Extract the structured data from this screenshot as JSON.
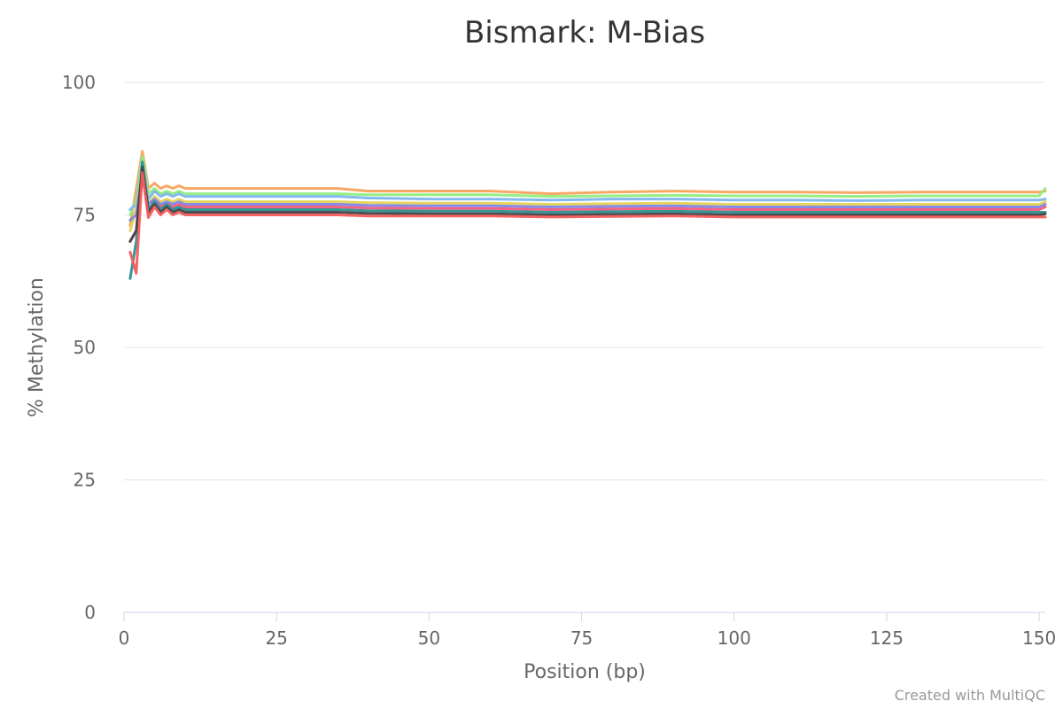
{
  "chart_data": {
    "type": "line",
    "title": "Bismark: M-Bias",
    "xlabel": "Position (bp)",
    "ylabel": "% Methylation",
    "xlim": [
      0,
      151
    ],
    "ylim": [
      0,
      100
    ],
    "x_ticks": [
      0,
      25,
      50,
      75,
      100,
      125,
      150
    ],
    "y_ticks": [
      0,
      25,
      50,
      75,
      100
    ],
    "grid": "horizontal",
    "legend": "none",
    "x": [
      1,
      2,
      3,
      4,
      5,
      6,
      7,
      8,
      9,
      10,
      12,
      15,
      20,
      25,
      30,
      35,
      40,
      50,
      60,
      70,
      80,
      90,
      100,
      110,
      120,
      130,
      140,
      150,
      151
    ],
    "series": [
      {
        "color": "#f7a35c",
        "values": [
          73,
          80,
          87,
          80,
          81,
          80,
          80.5,
          80,
          80.5,
          80,
          80,
          80,
          80,
          80,
          80,
          80,
          79.5,
          79.5,
          79.5,
          79,
          79.3,
          79.5,
          79.3,
          79.3,
          79.2,
          79.3,
          79.3,
          79.3,
          79.5
        ]
      },
      {
        "color": "#90ed7d",
        "values": [
          75,
          78,
          86,
          79,
          80,
          79,
          79.5,
          79,
          79.5,
          79,
          79,
          79,
          79,
          79,
          79,
          79,
          78.8,
          78.8,
          78.8,
          78.5,
          78.6,
          78.7,
          78.6,
          78.6,
          78.5,
          78.6,
          78.6,
          78.6,
          80
        ]
      },
      {
        "color": "#7cb5ec",
        "values": [
          76,
          77,
          85,
          78,
          79.5,
          78.5,
          79,
          78.5,
          79,
          78.5,
          78.5,
          78.5,
          78.5,
          78.5,
          78.5,
          78.5,
          78.2,
          78,
          78,
          77.8,
          78,
          78,
          77.8,
          77.8,
          77.7,
          77.8,
          77.8,
          77.8,
          78
        ]
      },
      {
        "color": "#e4d354",
        "values": [
          72,
          76,
          84,
          77,
          78.5,
          77.5,
          78,
          77.5,
          78,
          77.5,
          77.5,
          77.5,
          77.5,
          77.5,
          77.5,
          77.5,
          77.3,
          77.2,
          77.2,
          77,
          77.1,
          77.2,
          77,
          77,
          77,
          77,
          77,
          77,
          77.5
        ]
      },
      {
        "color": "#8085e9",
        "values": [
          74,
          75,
          83,
          77,
          78,
          77,
          77.5,
          77,
          77.5,
          77,
          77,
          77,
          77,
          77,
          77,
          77,
          76.8,
          76.7,
          76.7,
          76.5,
          76.6,
          76.7,
          76.5,
          76.5,
          76.5,
          76.5,
          76.5,
          76.5,
          77
        ]
      },
      {
        "color": "#f15c80",
        "values": [
          70,
          72,
          83,
          76,
          77.5,
          76.5,
          77,
          76.5,
          77,
          76.5,
          76.5,
          76.5,
          76.5,
          76.5,
          76.5,
          76.5,
          76.3,
          76.2,
          76.2,
          76,
          76.1,
          76.2,
          76,
          76,
          76,
          76,
          76,
          76,
          76.5
        ]
      },
      {
        "color": "#2b908f",
        "values": [
          63,
          70,
          85,
          76,
          77.5,
          76,
          77,
          76,
          76.5,
          76,
          76,
          76,
          76,
          76,
          76,
          76,
          75.8,
          75.7,
          75.7,
          75.5,
          75.6,
          75.7,
          75.5,
          75.5,
          75.5,
          75.5,
          75.5,
          75.5,
          75.5
        ]
      },
      {
        "color": "#434348",
        "values": [
          70,
          72,
          84,
          75.5,
          77,
          75.5,
          76.5,
          75.5,
          76,
          75.5,
          75.5,
          75.5,
          75.5,
          75.5,
          75.5,
          75.5,
          75.3,
          75.2,
          75.2,
          75,
          75.1,
          75.2,
          75,
          75,
          75,
          75,
          75,
          75,
          75.2
        ]
      },
      {
        "color": "#f45b5b",
        "values": [
          68,
          64,
          83,
          74.5,
          76.5,
          75,
          76,
          75,
          75.5,
          75,
          75,
          75,
          75,
          75,
          75,
          75,
          74.8,
          74.8,
          74.8,
          74.6,
          74.7,
          74.8,
          74.6,
          74.6,
          74.6,
          74.6,
          74.6,
          74.6,
          74.6
        ]
      }
    ]
  },
  "credits": "Created with MultiQC"
}
